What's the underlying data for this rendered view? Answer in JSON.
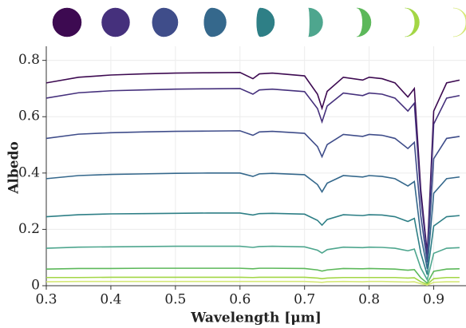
{
  "chart_data": {
    "type": "line",
    "x_label": "Wavelength [μm]",
    "y_label": "Albedo",
    "xlim": [
      0.3,
      0.95
    ],
    "ylim": [
      0,
      0.85
    ],
    "xticks": [
      0.3,
      0.4,
      0.5,
      0.6,
      0.7,
      0.8,
      0.9
    ],
    "yticks": [
      0,
      0.2,
      0.4,
      0.6,
      0.8
    ],
    "grid": true,
    "x": [
      0.3,
      0.35,
      0.4,
      0.45,
      0.5,
      0.55,
      0.6,
      0.62,
      0.63,
      0.65,
      0.7,
      0.72,
      0.727,
      0.735,
      0.76,
      0.79,
      0.8,
      0.82,
      0.84,
      0.86,
      0.87,
      0.88,
      0.89,
      0.9,
      0.92,
      0.94
    ],
    "series": [
      {
        "color": "#3d0a51",
        "values": [
          0.72,
          0.74,
          0.748,
          0.752,
          0.755,
          0.756,
          0.757,
          0.735,
          0.752,
          0.755,
          0.745,
          0.68,
          0.63,
          0.69,
          0.74,
          0.73,
          0.74,
          0.735,
          0.72,
          0.67,
          0.7,
          0.34,
          0.114,
          0.62,
          0.72,
          0.73
        ]
      },
      {
        "color": "#45307c",
        "values": [
          0.666,
          0.685,
          0.692,
          0.695,
          0.698,
          0.699,
          0.7,
          0.68,
          0.695,
          0.698,
          0.689,
          0.629,
          0.582,
          0.638,
          0.684,
          0.675,
          0.684,
          0.68,
          0.666,
          0.62,
          0.648,
          0.315,
          0.105,
          0.574,
          0.666,
          0.675
        ]
      },
      {
        "color": "#3f4d8a",
        "values": [
          0.523,
          0.538,
          0.543,
          0.546,
          0.548,
          0.549,
          0.55,
          0.534,
          0.546,
          0.548,
          0.541,
          0.494,
          0.458,
          0.501,
          0.537,
          0.53,
          0.537,
          0.534,
          0.523,
          0.487,
          0.509,
          0.248,
          0.083,
          0.451,
          0.523,
          0.53
        ]
      },
      {
        "color": "#35688c",
        "values": [
          0.38,
          0.391,
          0.395,
          0.397,
          0.399,
          0.4,
          0.4,
          0.388,
          0.397,
          0.399,
          0.394,
          0.359,
          0.333,
          0.364,
          0.391,
          0.386,
          0.391,
          0.388,
          0.38,
          0.354,
          0.37,
          0.18,
          0.06,
          0.328,
          0.38,
          0.386
        ]
      },
      {
        "color": "#2e7f86",
        "values": [
          0.245,
          0.252,
          0.255,
          0.256,
          0.257,
          0.258,
          0.258,
          0.251,
          0.256,
          0.257,
          0.254,
          0.232,
          0.215,
          0.235,
          0.252,
          0.249,
          0.252,
          0.251,
          0.245,
          0.228,
          0.239,
          0.116,
          0.039,
          0.212,
          0.245,
          0.249
        ]
      },
      {
        "color": "#4ea68e",
        "values": [
          0.133,
          0.137,
          0.138,
          0.139,
          0.14,
          0.14,
          0.14,
          0.136,
          0.139,
          0.14,
          0.138,
          0.126,
          0.116,
          0.128,
          0.137,
          0.135,
          0.137,
          0.136,
          0.133,
          0.124,
          0.13,
          0.063,
          0.021,
          0.115,
          0.133,
          0.135
        ]
      },
      {
        "color": "#5cb85a",
        "values": [
          0.059,
          0.061,
          0.061,
          0.062,
          0.062,
          0.062,
          0.062,
          0.06,
          0.062,
          0.062,
          0.061,
          0.056,
          0.052,
          0.056,
          0.061,
          0.06,
          0.061,
          0.06,
          0.059,
          0.055,
          0.057,
          0.028,
          0.009,
          0.051,
          0.059,
          0.06
        ]
      },
      {
        "color": "#a3d645",
        "values": [
          0.029,
          0.029,
          0.03,
          0.03,
          0.03,
          0.03,
          0.03,
          0.029,
          0.03,
          0.03,
          0.03,
          0.027,
          0.025,
          0.027,
          0.029,
          0.029,
          0.029,
          0.029,
          0.029,
          0.027,
          0.028,
          0.014,
          0.005,
          0.025,
          0.029,
          0.029
        ]
      },
      {
        "color": "#d6e878",
        "values": [
          0.014,
          0.015,
          0.015,
          0.015,
          0.015,
          0.015,
          0.015,
          0.015,
          0.015,
          0.015,
          0.015,
          0.013,
          0.012,
          0.014,
          0.015,
          0.014,
          0.015,
          0.015,
          0.014,
          0.013,
          0.014,
          0.007,
          0.002,
          0.012,
          0.014,
          0.014
        ]
      }
    ]
  }
}
